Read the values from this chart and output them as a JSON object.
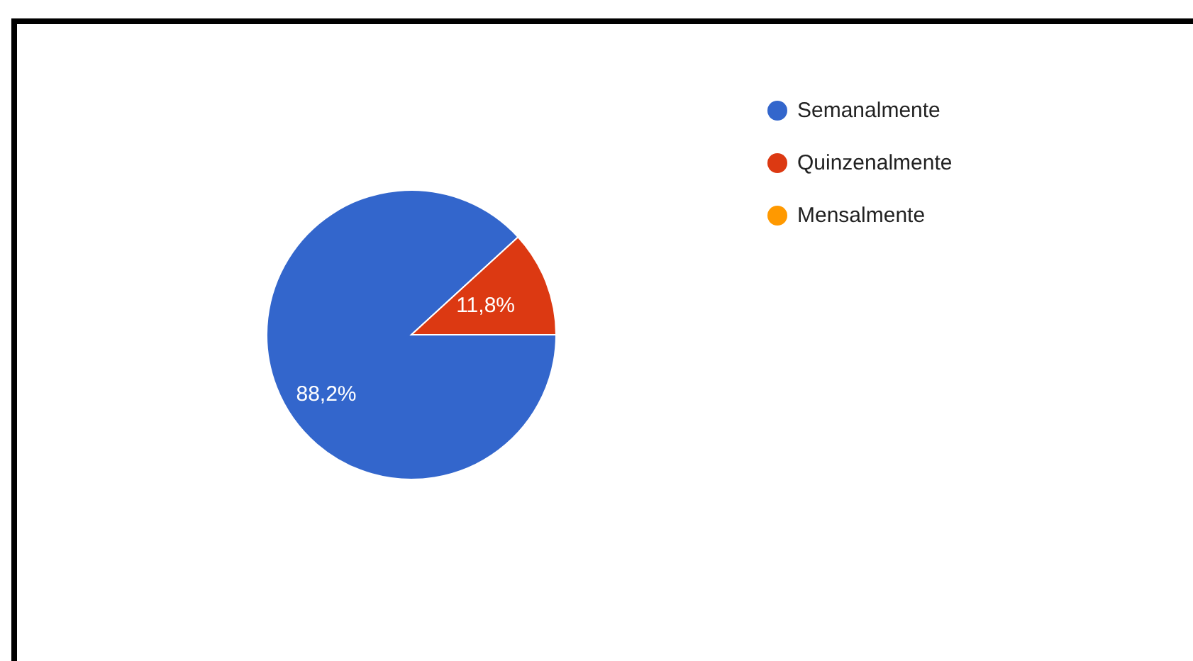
{
  "chart_data": {
    "type": "pie",
    "categories": [
      "Semanalmente",
      "Quinzenalmente",
      "Mensalmente"
    ],
    "values": [
      88.2,
      11.8,
      0
    ],
    "colors": [
      "#3366cc",
      "#dc3912",
      "#ff9900"
    ],
    "value_labels": [
      "88,2%",
      "11,8%",
      null
    ],
    "legend": "right"
  }
}
